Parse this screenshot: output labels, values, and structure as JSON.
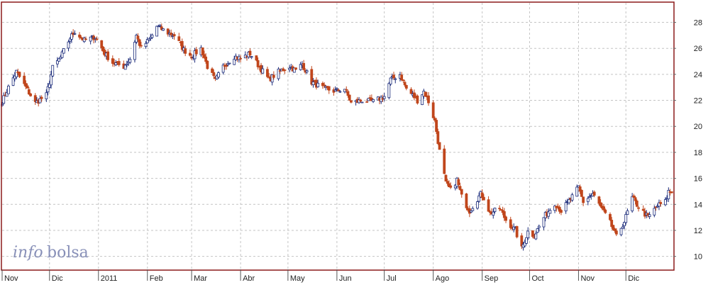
{
  "chart_data": {
    "type": "candlestick",
    "title": "",
    "xlabel": "",
    "ylabel": "",
    "x_tick_labels": [
      "Nov",
      "Dic",
      "2011",
      "Feb",
      "Mar",
      "Abr",
      "May",
      "Jun",
      "Jul",
      "Ago",
      "Sep",
      "Oct",
      "Nov",
      "Dic"
    ],
    "x_tick_dates": [
      "2010-11-01",
      "2010-12-01",
      "2011-01-01",
      "2011-02-01",
      "2011-03-01",
      "2011-04-01",
      "2011-05-01",
      "2011-06-01",
      "2011-07-01",
      "2011-08-01",
      "2011-09-01",
      "2011-10-01",
      "2011-11-01",
      "2011-12-01"
    ],
    "x_range": [
      "2010-11-01",
      "2011-12-31"
    ],
    "y_ticks": [
      10,
      12,
      14,
      16,
      18,
      20,
      22,
      24,
      26,
      28
    ],
    "ylim": [
      9,
      29.5
    ],
    "y_axis_position": "right",
    "grid": true,
    "up_color": "#1a2a7a",
    "down_color": "#c0461c",
    "frame_color": "#8b1a1a",
    "series": [
      {
        "name": "",
        "close_path": [
          [
            "2010-11-01",
            21.9
          ],
          [
            "2010-11-05",
            23.0
          ],
          [
            "2010-11-10",
            24.2
          ],
          [
            "2010-11-16",
            23.0
          ],
          [
            "2010-11-22",
            21.8
          ],
          [
            "2010-11-29",
            22.4
          ],
          [
            "2010-12-03",
            24.5
          ],
          [
            "2010-12-08",
            25.3
          ],
          [
            "2010-12-14",
            26.8
          ],
          [
            "2010-12-17",
            27.3
          ],
          [
            "2010-12-23",
            26.6
          ],
          [
            "2010-12-30",
            26.9
          ],
          [
            "2011-01-05",
            25.6
          ],
          [
            "2011-01-10",
            24.9
          ],
          [
            "2011-01-17",
            24.6
          ],
          [
            "2011-01-21",
            25.2
          ],
          [
            "2011-01-25",
            27.0
          ],
          [
            "2011-01-28",
            26.0
          ],
          [
            "2011-02-03",
            26.8
          ],
          [
            "2011-02-07",
            27.7
          ],
          [
            "2011-02-14",
            27.2
          ],
          [
            "2011-02-18",
            27.0
          ],
          [
            "2011-02-24",
            25.9
          ],
          [
            "2011-03-01",
            25.4
          ],
          [
            "2011-03-07",
            26.0
          ],
          [
            "2011-03-11",
            24.6
          ],
          [
            "2011-03-16",
            23.5
          ],
          [
            "2011-03-21",
            24.6
          ],
          [
            "2011-03-28",
            25.4
          ],
          [
            "2011-04-01",
            25.2
          ],
          [
            "2011-04-07",
            25.6
          ],
          [
            "2011-04-14",
            24.4
          ],
          [
            "2011-04-19",
            23.6
          ],
          [
            "2011-04-25",
            24.2
          ],
          [
            "2011-05-02",
            24.6
          ],
          [
            "2011-05-06",
            24.3
          ],
          [
            "2011-05-10",
            24.8
          ],
          [
            "2011-05-16",
            23.4
          ],
          [
            "2011-05-24",
            22.9
          ],
          [
            "2011-05-31",
            22.7
          ],
          [
            "2011-06-06",
            22.9
          ],
          [
            "2011-06-10",
            21.8
          ],
          [
            "2011-06-17",
            22.0
          ],
          [
            "2011-06-24",
            21.9
          ],
          [
            "2011-07-01",
            22.3
          ],
          [
            "2011-07-05",
            23.6
          ],
          [
            "2011-07-11",
            24.0
          ],
          [
            "2011-07-15",
            22.9
          ],
          [
            "2011-07-22",
            22.0
          ],
          [
            "2011-07-26",
            22.7
          ],
          [
            "2011-07-29",
            21.9
          ],
          [
            "2011-08-02",
            20.4
          ],
          [
            "2011-08-05",
            18.1
          ],
          [
            "2011-08-09",
            15.6
          ],
          [
            "2011-08-12",
            15.1
          ],
          [
            "2011-08-16",
            15.9
          ],
          [
            "2011-08-19",
            14.6
          ],
          [
            "2011-08-24",
            13.5
          ],
          [
            "2011-08-31",
            14.8
          ],
          [
            "2011-09-02",
            14.5
          ],
          [
            "2011-09-06",
            13.3
          ],
          [
            "2011-09-12",
            13.7
          ],
          [
            "2011-09-16",
            12.8
          ],
          [
            "2011-09-22",
            12.0
          ],
          [
            "2011-09-26",
            10.6
          ],
          [
            "2011-09-30",
            11.9
          ],
          [
            "2011-10-04",
            11.6
          ],
          [
            "2011-10-10",
            13.0
          ],
          [
            "2011-10-17",
            14.1
          ],
          [
            "2011-10-21",
            13.5
          ],
          [
            "2011-10-27",
            14.4
          ],
          [
            "2011-11-01",
            15.3
          ],
          [
            "2011-11-04",
            14.2
          ],
          [
            "2011-11-10",
            14.8
          ],
          [
            "2011-11-16",
            13.6
          ],
          [
            "2011-11-21",
            12.6
          ],
          [
            "2011-11-25",
            11.5
          ],
          [
            "2011-11-30",
            12.7
          ],
          [
            "2011-12-05",
            14.5
          ],
          [
            "2011-12-09",
            13.8
          ],
          [
            "2011-12-15",
            13.0
          ],
          [
            "2011-12-21",
            13.9
          ],
          [
            "2011-12-26",
            14.2
          ],
          [
            "2011-12-28",
            15.0
          ],
          [
            "2011-12-31",
            14.9
          ]
        ]
      }
    ]
  },
  "watermark": {
    "part1": "info",
    "part2": "bolsa"
  }
}
